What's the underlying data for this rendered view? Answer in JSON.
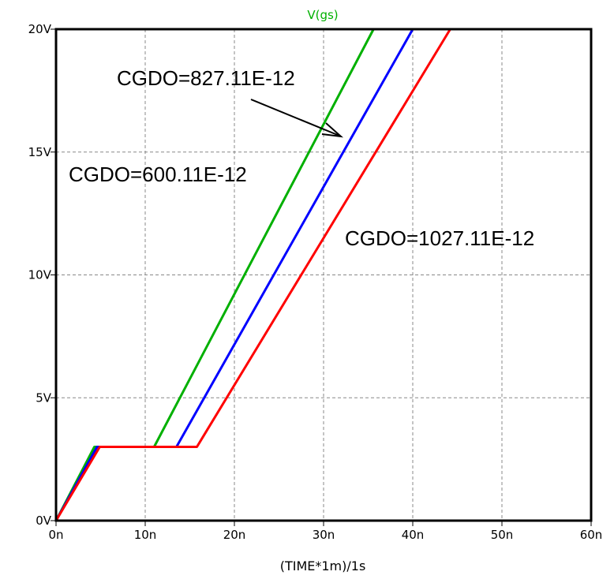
{
  "chart_data": {
    "type": "line",
    "title": "V(gs)",
    "xlabel": "(TIME*1m)/1s",
    "ylabel": "",
    "xlim": [
      0,
      60
    ],
    "ylim": [
      0,
      20
    ],
    "x_unit": "n",
    "y_unit": "V",
    "x_ticks": [
      "0n",
      "10n",
      "20n",
      "30n",
      "40n",
      "50n",
      "60n"
    ],
    "y_ticks": [
      "0V",
      "5V",
      "10V",
      "15V",
      "20V"
    ],
    "grid": true,
    "title_color": "#00b000",
    "series": [
      {
        "color": "#00b000",
        "points": [
          [
            0,
            0
          ],
          [
            4.3,
            3.0
          ],
          [
            11.0,
            3.0
          ],
          [
            35.6,
            20.0
          ]
        ]
      },
      {
        "color": "#0000ff",
        "points": [
          [
            0,
            0
          ],
          [
            4.6,
            3.0
          ],
          [
            13.5,
            3.0
          ],
          [
            40.0,
            20.0
          ]
        ]
      },
      {
        "color": "#ff0000",
        "points": [
          [
            0,
            0
          ],
          [
            4.9,
            3.0
          ],
          [
            15.8,
            3.0
          ],
          [
            44.2,
            20.0
          ]
        ]
      }
    ],
    "annotations": [
      {
        "id": "cgdo-827",
        "text": "CGDO=827.11E-12"
      },
      {
        "id": "cgdo-600",
        "text": "CGDO=600.11E-12"
      },
      {
        "id": "cgdo-1027",
        "text": "CGDO=1027.11E-12"
      }
    ]
  }
}
